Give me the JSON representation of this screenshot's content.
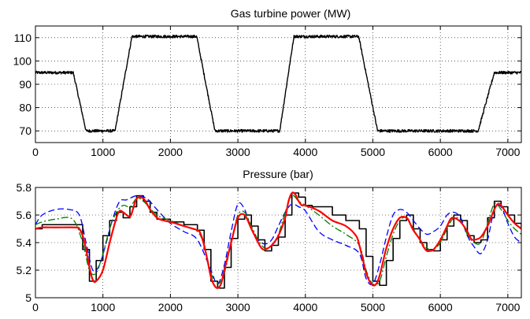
{
  "chart_data": [
    {
      "type": "line",
      "title": "Gas turbine power (MW)",
      "xlabel": "",
      "ylabel": "",
      "xlim": [
        0,
        7200
      ],
      "ylim": [
        65,
        115
      ],
      "xticks": [
        0,
        1000,
        2000,
        3000,
        4000,
        5000,
        6000,
        7000
      ],
      "yticks": [
        70,
        80,
        90,
        100,
        110
      ],
      "grid": true,
      "series": [
        {
          "color": "#000000",
          "style": "solid",
          "noise": 0.6,
          "x": [
            0,
            560,
            750,
            1180,
            1430,
            2390,
            2660,
            3620,
            3830,
            4790,
            5070,
            6560,
            6800,
            7200
          ],
          "y": [
            95,
            95,
            70,
            70,
            110.5,
            110.5,
            70,
            70,
            110.5,
            110.5,
            70,
            70,
            95,
            95
          ]
        }
      ]
    },
    {
      "type": "line",
      "title": "Pressure (bar)",
      "xlabel": "",
      "ylabel": "",
      "xlim": [
        0,
        7200
      ],
      "ylim": [
        5,
        5.8
      ],
      "xticks": [
        0,
        1000,
        2000,
        3000,
        4000,
        5000,
        6000,
        7000
      ],
      "yticks": [
        5,
        5.2,
        5.4,
        5.6,
        5.8
      ],
      "grid": true,
      "series": [
        {
          "color": "#000000",
          "style": "stairs",
          "width": 1.6,
          "x": [
            0,
            100,
            600,
            700,
            800,
            900,
            1000,
            1100,
            1200,
            1300,
            1400,
            1500,
            1600,
            1700,
            1800,
            2000,
            2200,
            2400,
            2500,
            2600,
            2700,
            2800,
            2900,
            3000,
            3100,
            3200,
            3300,
            3400,
            3500,
            3600,
            3700,
            3800,
            3900,
            4000,
            4100,
            4200,
            4400,
            4600,
            4800,
            4900,
            5000,
            5100,
            5200,
            5300,
            5400,
            5500,
            5600,
            5700,
            5800,
            5900,
            6000,
            6100,
            6200,
            6300,
            6400,
            6500,
            6600,
            6700,
            6800,
            6900,
            7000,
            7100,
            7200
          ],
          "y": [
            5.5,
            5.53,
            5.53,
            5.35,
            5.12,
            5.27,
            5.45,
            5.56,
            5.62,
            5.58,
            5.66,
            5.74,
            5.7,
            5.62,
            5.57,
            5.55,
            5.53,
            5.49,
            5.35,
            5.12,
            5.07,
            5.22,
            5.43,
            5.57,
            5.6,
            5.52,
            5.42,
            5.34,
            5.38,
            5.44,
            5.6,
            5.76,
            5.73,
            5.67,
            5.66,
            5.66,
            5.6,
            5.56,
            5.5,
            5.3,
            5.12,
            5.09,
            5.27,
            5.43,
            5.56,
            5.6,
            5.5,
            5.4,
            5.35,
            5.34,
            5.42,
            5.52,
            5.6,
            5.56,
            5.45,
            5.4,
            5.42,
            5.58,
            5.7,
            5.66,
            5.6,
            5.54,
            5.5
          ]
        },
        {
          "color": "#0000ff",
          "style": "dashed",
          "width": 1.3,
          "x": [
            0,
            100,
            300,
            500,
            650,
            750,
            850,
            950,
            1050,
            1150,
            1250,
            1350,
            1500,
            1650,
            1800,
            2000,
            2200,
            2400,
            2600,
            2700,
            2800,
            2900,
            3000,
            3100,
            3200,
            3300,
            3400,
            3500,
            3600,
            3700,
            3800,
            3900,
            4000,
            4200,
            4400,
            4600,
            4800,
            4900,
            5000,
            5100,
            5200,
            5300,
            5400,
            5500,
            5600,
            5700,
            5800,
            5900,
            6000,
            6100,
            6200,
            6300,
            6400,
            6500,
            6600,
            6700,
            6800,
            6900,
            7000,
            7100,
            7200
          ],
          "y": [
            5.53,
            5.6,
            5.64,
            5.64,
            5.6,
            5.4,
            5.2,
            5.24,
            5.4,
            5.58,
            5.7,
            5.71,
            5.74,
            5.72,
            5.64,
            5.54,
            5.48,
            5.42,
            5.2,
            5.1,
            5.24,
            5.48,
            5.68,
            5.64,
            5.5,
            5.42,
            5.39,
            5.42,
            5.52,
            5.62,
            5.68,
            5.66,
            5.63,
            5.48,
            5.42,
            5.38,
            5.32,
            5.14,
            5.1,
            5.24,
            5.44,
            5.6,
            5.64,
            5.62,
            5.56,
            5.5,
            5.46,
            5.48,
            5.52,
            5.6,
            5.62,
            5.58,
            5.45,
            5.37,
            5.32,
            5.42,
            5.64,
            5.66,
            5.54,
            5.44,
            5.4
          ]
        },
        {
          "color": "#008000",
          "style": "dashdot",
          "width": 1.3,
          "x": [
            0,
            100,
            300,
            550,
            700,
            800,
            900,
            1000,
            1100,
            1200,
            1300,
            1400,
            1500,
            1600,
            1800,
            2000,
            2200,
            2400,
            2500,
            2600,
            2700,
            2800,
            2900,
            3000,
            3100,
            3200,
            3300,
            3400,
            3500,
            3600,
            3700,
            3800,
            3900,
            4000,
            4200,
            4400,
            4600,
            4800,
            4900,
            5000,
            5100,
            5200,
            5300,
            5400,
            5500,
            5600,
            5700,
            5800,
            5900,
            6000,
            6100,
            6200,
            6300,
            6400,
            6500,
            6600,
            6700,
            6800,
            6900,
            7000,
            7100,
            7200
          ],
          "y": [
            5.53,
            5.55,
            5.57,
            5.57,
            5.4,
            5.2,
            5.18,
            5.32,
            5.5,
            5.62,
            5.67,
            5.66,
            5.72,
            5.7,
            5.6,
            5.56,
            5.52,
            5.48,
            5.38,
            5.18,
            5.1,
            5.18,
            5.4,
            5.6,
            5.62,
            5.52,
            5.42,
            5.36,
            5.38,
            5.46,
            5.62,
            5.74,
            5.7,
            5.67,
            5.6,
            5.52,
            5.46,
            5.38,
            5.2,
            5.1,
            5.12,
            5.3,
            5.46,
            5.56,
            5.58,
            5.5,
            5.42,
            5.36,
            5.35,
            5.4,
            5.5,
            5.58,
            5.56,
            5.46,
            5.4,
            5.4,
            5.54,
            5.68,
            5.64,
            5.56,
            5.5,
            5.46
          ]
        },
        {
          "color": "#ff0000",
          "style": "solid",
          "width": 2.2,
          "x": [
            0,
            100,
            300,
            600,
            650,
            700,
            750,
            800,
            850,
            900,
            1000,
            1100,
            1200,
            1250,
            1300,
            1400,
            1450,
            1500,
            1600,
            1700,
            1800,
            1900,
            2000,
            2200,
            2400,
            2450,
            2500,
            2550,
            2600,
            2650,
            2700,
            2750,
            2800,
            2900,
            3000,
            3100,
            3200,
            3300,
            3350,
            3400,
            3500,
            3600,
            3700,
            3750,
            3800,
            3850,
            3900,
            3950,
            4000,
            4200,
            4400,
            4600,
            4750,
            4800,
            4850,
            4900,
            4950,
            5000,
            5050,
            5100,
            5150,
            5200,
            5300,
            5400,
            5500,
            5550,
            5600,
            5700,
            5750,
            5800,
            5850,
            5900,
            6000,
            6100,
            6150,
            6200,
            6300,
            6400,
            6450,
            6500,
            6600,
            6700,
            6750,
            6800,
            6850,
            6900,
            7000,
            7100,
            7200
          ],
          "y": [
            5.5,
            5.51,
            5.51,
            5.51,
            5.5,
            5.45,
            5.35,
            5.22,
            5.13,
            5.12,
            5.2,
            5.4,
            5.58,
            5.63,
            5.62,
            5.59,
            5.65,
            5.72,
            5.72,
            5.64,
            5.58,
            5.56,
            5.55,
            5.52,
            5.49,
            5.46,
            5.38,
            5.27,
            5.15,
            5.09,
            5.07,
            5.1,
            5.2,
            5.4,
            5.58,
            5.6,
            5.5,
            5.4,
            5.36,
            5.35,
            5.38,
            5.45,
            5.58,
            5.7,
            5.76,
            5.75,
            5.7,
            5.67,
            5.67,
            5.63,
            5.56,
            5.52,
            5.45,
            5.38,
            5.28,
            5.18,
            5.12,
            5.09,
            5.1,
            5.16,
            5.26,
            5.36,
            5.5,
            5.58,
            5.58,
            5.54,
            5.49,
            5.42,
            5.37,
            5.34,
            5.34,
            5.35,
            5.42,
            5.52,
            5.57,
            5.58,
            5.55,
            5.48,
            5.43,
            5.42,
            5.44,
            5.52,
            5.58,
            5.64,
            5.68,
            5.67,
            5.6,
            5.54,
            5.5
          ]
        }
      ]
    }
  ]
}
